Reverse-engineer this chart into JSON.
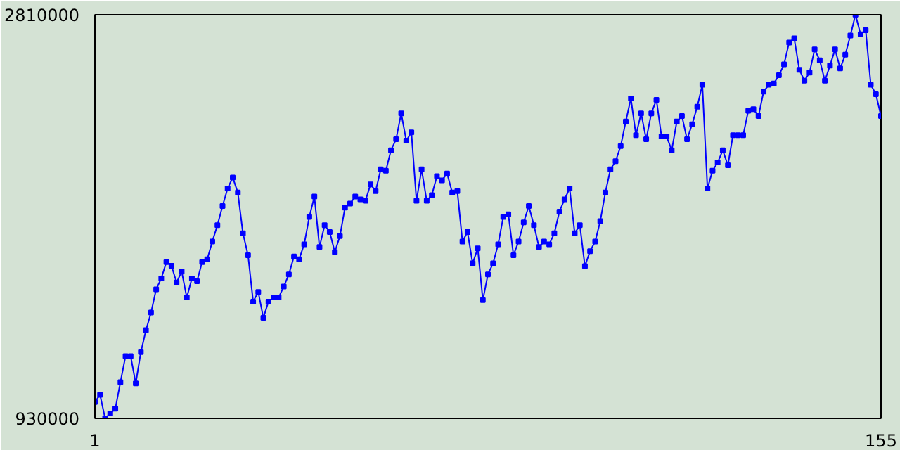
{
  "chart_data": {
    "type": "line",
    "x": [
      1,
      2,
      3,
      4,
      5,
      6,
      7,
      8,
      9,
      10,
      11,
      12,
      13,
      14,
      15,
      16,
      17,
      18,
      19,
      20,
      21,
      22,
      23,
      24,
      25,
      26,
      27,
      28,
      29,
      30,
      31,
      32,
      33,
      34,
      35,
      36,
      37,
      38,
      39,
      40,
      41,
      42,
      43,
      44,
      45,
      46,
      47,
      48,
      49,
      50,
      51,
      52,
      53,
      54,
      55,
      56,
      57,
      58,
      59,
      60,
      61,
      62,
      63,
      64,
      65,
      66,
      67,
      68,
      69,
      70,
      71,
      72,
      73,
      74,
      75,
      76,
      77,
      78,
      79,
      80,
      81,
      82,
      83,
      84,
      85,
      86,
      87,
      88,
      89,
      90,
      91,
      92,
      93,
      94,
      95,
      96,
      97,
      98,
      99,
      100,
      101,
      102,
      103,
      104,
      105,
      106,
      107,
      108,
      109,
      110,
      111,
      112,
      113,
      114,
      115,
      116,
      117,
      118,
      119,
      120,
      121,
      122,
      123,
      124,
      125,
      126,
      127,
      128,
      129,
      130,
      131,
      132,
      133,
      134,
      135,
      136,
      137,
      138,
      139,
      140,
      141,
      142,
      143,
      144,
      145,
      146,
      147,
      148,
      149,
      150,
      151,
      152,
      153,
      154,
      155
    ],
    "series": [
      {
        "color": "#0000ff",
        "values": [
          1006000,
          1040000,
          930000,
          953000,
          975000,
          1099000,
          1220000,
          1220000,
          1093000,
          1239000,
          1341000,
          1423000,
          1531000,
          1582000,
          1658000,
          1641000,
          1563000,
          1614000,
          1493000,
          1582000,
          1569000,
          1658000,
          1671000,
          1754000,
          1830000,
          1919000,
          2001000,
          2052000,
          1982000,
          1792000,
          1690000,
          1474000,
          1519000,
          1398000,
          1474000,
          1493000,
          1493000,
          1544000,
          1601000,
          1684000,
          1671000,
          1741000,
          1868000,
          1963000,
          1728000,
          1830000,
          1798000,
          1705000,
          1779000,
          1912000,
          1931000,
          1963000,
          1950000,
          1944000,
          2020000,
          1989000,
          2090000,
          2084000,
          2179000,
          2230000,
          2351000,
          2224000,
          2262000,
          1944000,
          2090000,
          1944000,
          1970000,
          2058000,
          2039000,
          2071000,
          1982000,
          1989000,
          1754000,
          1798000,
          1652000,
          1722000,
          1481000,
          1601000,
          1652000,
          1741000,
          1868000,
          1881000,
          1690000,
          1754000,
          1843000,
          1919000,
          1830000,
          1728000,
          1754000,
          1741000,
          1792000,
          1893000,
          1950000,
          2001000,
          1792000,
          1830000,
          1639000,
          1709000,
          1754000,
          1849000,
          1982000,
          2090000,
          2128000,
          2198000,
          2313000,
          2420000,
          2249000,
          2351000,
          2230000,
          2351000,
          2414000,
          2243000,
          2243000,
          2179000,
          2313000,
          2338000,
          2230000,
          2300000,
          2382000,
          2484000,
          2001000,
          2084000,
          2122000,
          2179000,
          2109000,
          2249000,
          2249000,
          2249000,
          2363000,
          2370000,
          2338000,
          2452000,
          2484000,
          2490000,
          2528000,
          2579000,
          2681000,
          2700000,
          2554000,
          2503000,
          2541000,
          2649000,
          2598000,
          2503000,
          2573000,
          2649000,
          2560000,
          2624000,
          2713000,
          2810000,
          2719000,
          2738000,
          2484000,
          2440000,
          2338000
        ]
      }
    ],
    "xlim": [
      1,
      155
    ],
    "xticks": [
      1,
      155
    ],
    "ylim": [
      930000,
      2810000
    ],
    "yticks": [
      930000,
      2810000
    ],
    "marker": "square",
    "line_style": "solid"
  }
}
